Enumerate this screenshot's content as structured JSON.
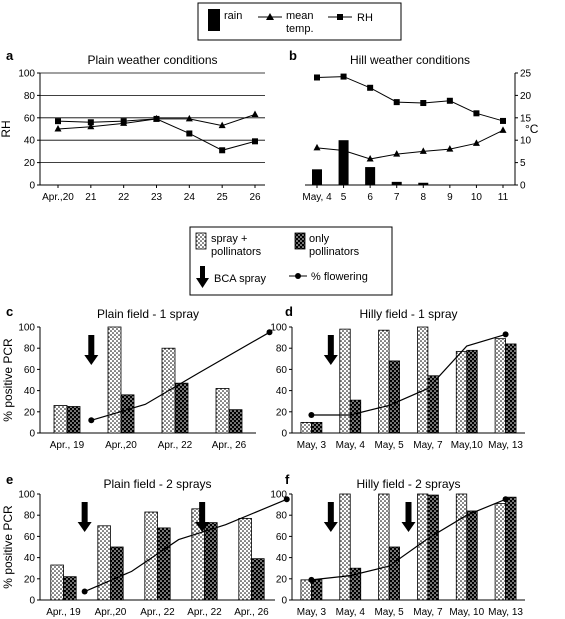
{
  "legend_top": {
    "rain": "rain",
    "mean_temp_line1": "mean",
    "mean_temp_line2": "temp.",
    "rh": "RH"
  },
  "legend_mid": {
    "spray_line1": "spray +",
    "spray_line2": "pollinators",
    "only_line1": "only",
    "only_line2": "pollinators",
    "bca": "BCA spray",
    "flowering": "% flowering"
  },
  "chart_data": [
    {
      "id": "a",
      "type": "line",
      "label": "a",
      "title": "Plain weather conditions",
      "ylabel": "RH",
      "ylim": [
        0,
        100
      ],
      "yticks": [
        "0",
        "20",
        "40",
        "60",
        "80",
        "100"
      ],
      "categories": [
        "Apr.,20",
        "21",
        "22",
        "23",
        "24",
        "25",
        "26"
      ],
      "series": [
        {
          "name": "RH",
          "marker": "square",
          "values": [
            57,
            56,
            57,
            59,
            46,
            31,
            39
          ]
        },
        {
          "name": "mean temp.",
          "marker": "triangle",
          "values": [
            50,
            52,
            55,
            59,
            59,
            53,
            63
          ]
        }
      ],
      "grid": true
    },
    {
      "id": "b",
      "type": "bar+line",
      "label": "b",
      "title": "Hill weather conditions",
      "ylabel_right": "°C",
      "ylim": [
        0,
        25
      ],
      "yticks": [
        "0",
        "5",
        "10",
        "15",
        "20",
        "25"
      ],
      "categories": [
        "May, 4",
        "5",
        "6",
        "7",
        "8",
        "9",
        "10",
        "11"
      ],
      "series": [
        {
          "name": "rain",
          "kind": "bar",
          "values": [
            3.5,
            10,
            4,
            0.7,
            0.5,
            0,
            0,
            0
          ]
        },
        {
          "name": "RH",
          "marker": "square",
          "values": [
            24,
            24.2,
            21.7,
            18.5,
            18.3,
            18.8,
            16,
            14.3
          ]
        },
        {
          "name": "mean temp.",
          "marker": "triangle",
          "values": [
            8.3,
            7.7,
            5.8,
            6.9,
            7.5,
            8,
            9.3,
            12.2
          ]
        }
      ],
      "grid": false
    },
    {
      "id": "c",
      "type": "bar+line",
      "label": "c",
      "title": "Plain field - 1 spray",
      "ylabel": "% positive PCR",
      "ylim": [
        0,
        100
      ],
      "yticks": [
        "0",
        "20",
        "40",
        "60",
        "80",
        "100"
      ],
      "categories": [
        "Apr., 19",
        "Apr.,20",
        "Apr., 22",
        "Apr., 26"
      ],
      "series": [
        {
          "name": "spray + pollinators",
          "values": [
            26,
            100,
            80,
            42
          ]
        },
        {
          "name": "only pollinators",
          "values": [
            25,
            36,
            47,
            22
          ]
        }
      ],
      "flowering": [
        [
          0.45,
          12
        ],
        [
          1.45,
          27
        ],
        [
          2.45,
          57
        ],
        [
          3.75,
          95
        ]
      ],
      "bca_spray_at": [
        0.45
      ]
    },
    {
      "id": "d",
      "type": "bar+line",
      "label": "d",
      "title": "Hilly field - 1 spray",
      "ylim": [
        0,
        100
      ],
      "yticks": [
        "0",
        "20",
        "40",
        "60",
        "80",
        "100"
      ],
      "categories": [
        "May, 3",
        "May, 4",
        "May, 5",
        "May, 7",
        "May,10",
        "May, 13"
      ],
      "series": [
        {
          "name": "spray + pollinators",
          "values": [
            10,
            98,
            97,
            100,
            77,
            89
          ]
        },
        {
          "name": "only pollinators",
          "values": [
            10,
            31,
            68,
            54,
            78,
            84
          ]
        }
      ],
      "flowering": [
        [
          0,
          17
        ],
        [
          1,
          17
        ],
        [
          2,
          26
        ],
        [
          3,
          42
        ],
        [
          4,
          82
        ],
        [
          5,
          93
        ]
      ],
      "bca_spray_at": [
        0.5
      ]
    },
    {
      "id": "e",
      "type": "bar+line",
      "label": "e",
      "title": "Plain field  - 2 sprays",
      "ylabel": "% positive PCR",
      "ylim": [
        0,
        100
      ],
      "yticks": [
        "0",
        "20",
        "40",
        "60",
        "80",
        "100"
      ],
      "categories": [
        "Apr., 19",
        "Apr.,20",
        "Apr., 22",
        "Apr., 22",
        "Apr., 26"
      ],
      "series": [
        {
          "name": "spray + pollinators",
          "values": [
            33,
            70,
            83,
            86,
            77
          ]
        },
        {
          "name": "only pollinators",
          "values": [
            22,
            50,
            68,
            73,
            39
          ]
        }
      ],
      "flowering": [
        [
          0.45,
          8
        ],
        [
          1.45,
          27
        ],
        [
          2.45,
          57
        ],
        [
          3.45,
          71
        ],
        [
          4.75,
          95
        ]
      ],
      "bca_spray_at": [
        0.45,
        2.95
      ]
    },
    {
      "id": "f",
      "type": "bar+line",
      "label": "f",
      "title": "Hilly field - 2 sprays",
      "ylim": [
        0,
        100
      ],
      "yticks": [
        "0",
        "20",
        "40",
        "60",
        "80",
        "100"
      ],
      "categories": [
        "May, 3",
        "May, 4",
        "May, 5",
        "May, 7",
        "May, 10",
        "May, 13"
      ],
      "series": [
        {
          "name": "spray + pollinators",
          "values": [
            19,
            100,
            100,
            100,
            100,
            91
          ]
        },
        {
          "name": "only pollinators",
          "values": [
            19,
            30,
            50,
            99,
            84,
            97
          ]
        }
      ],
      "flowering": [
        [
          0,
          19
        ],
        [
          1,
          23
        ],
        [
          2,
          32
        ],
        [
          3,
          58
        ],
        [
          4,
          80
        ],
        [
          5,
          95
        ]
      ],
      "bca_spray_at": [
        0.5,
        2.5
      ]
    }
  ]
}
